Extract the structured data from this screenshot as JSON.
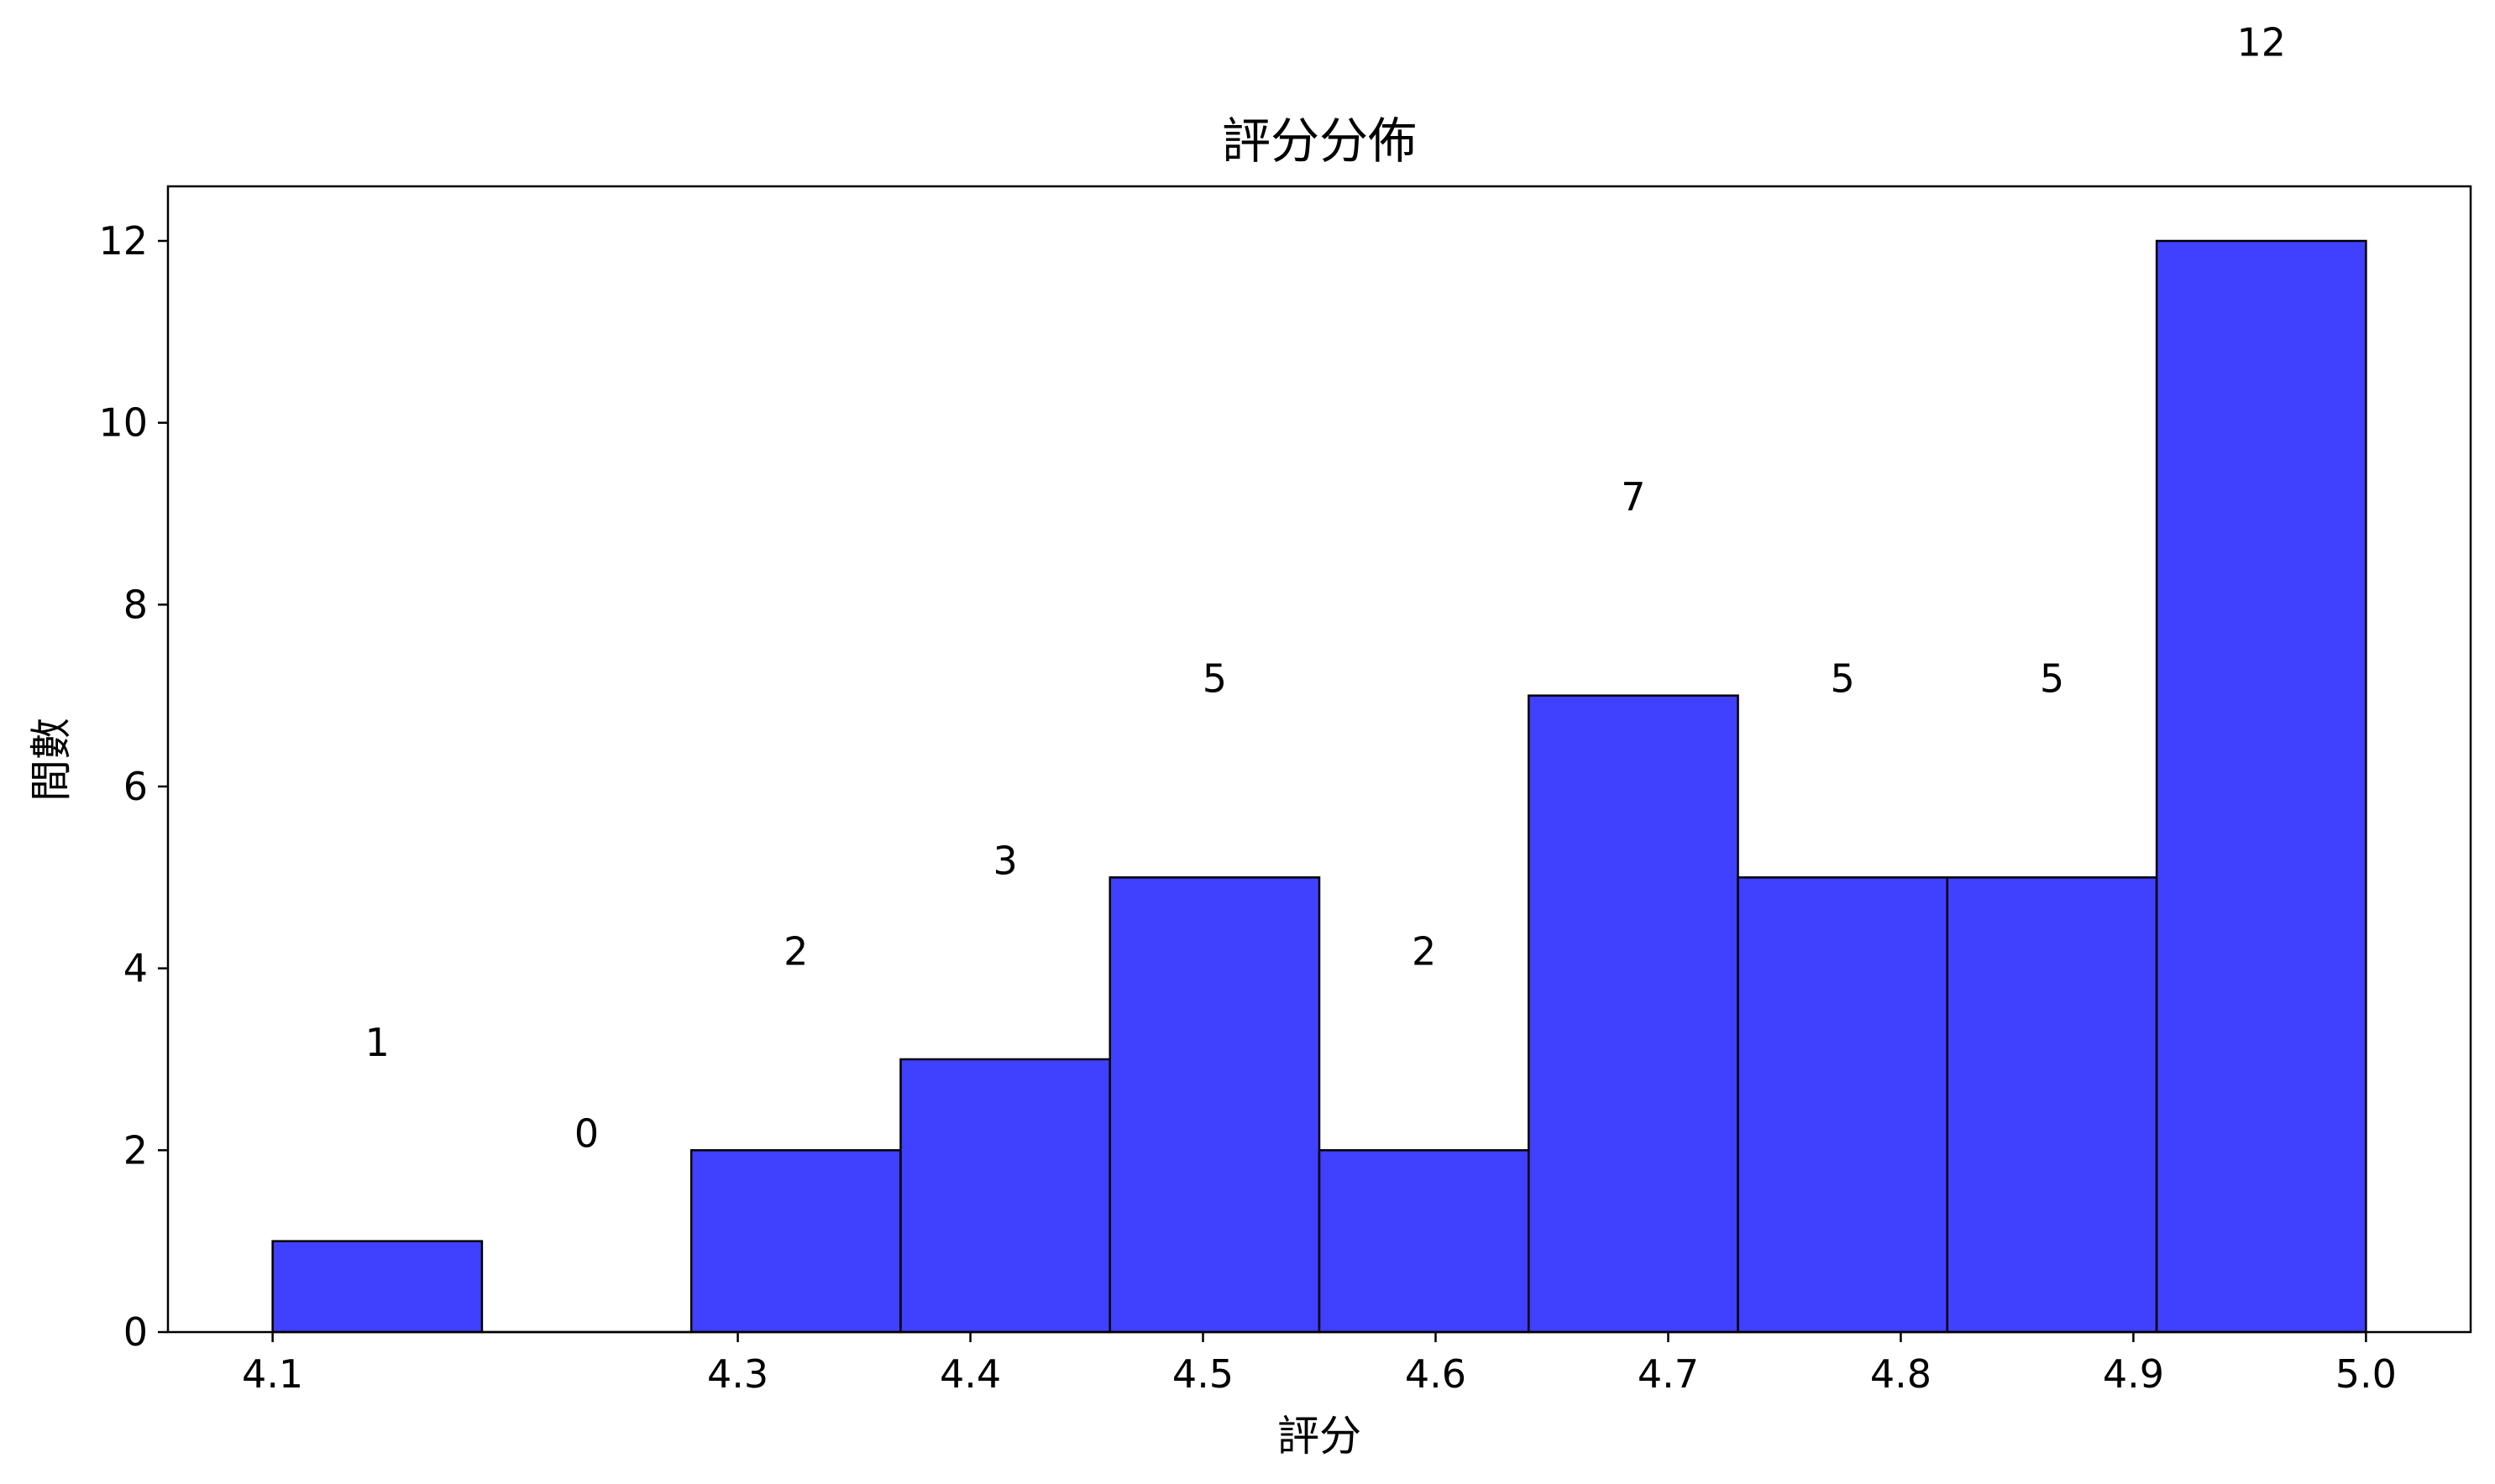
{
  "chart_data": {
    "type": "bar",
    "title": "評分分佈",
    "xlabel": "評分",
    "ylabel": "間數",
    "bin_edges": [
      4.1,
      4.19,
      4.28,
      4.37,
      4.46,
      4.55,
      4.64,
      4.73,
      4.82,
      4.91,
      5.0
    ],
    "values": [
      1,
      0,
      2,
      3,
      5,
      2,
      7,
      5,
      5,
      12
    ],
    "data_labels": [
      "1",
      "0",
      "2",
      "3",
      "5",
      "2",
      "7",
      "5",
      "5",
      "12"
    ],
    "x_ticks": [
      4.1,
      4.3,
      4.4,
      4.5,
      4.6,
      4.7,
      4.8,
      4.9,
      5.0
    ],
    "x_tick_labels": [
      "4.1",
      "4.3",
      "4.4",
      "4.5",
      "4.6",
      "4.7",
      "4.8",
      "4.9",
      "5.0"
    ],
    "y_ticks": [
      0,
      2,
      4,
      6,
      8,
      10,
      12
    ],
    "y_tick_labels": [
      "0",
      "2",
      "4",
      "6",
      "8",
      "10",
      "12"
    ],
    "xlim": [
      4.055,
      5.045
    ],
    "ylim": [
      0,
      12.6
    ],
    "grid": false,
    "legend": false,
    "bar_color": "#4040ff",
    "edge_color": "#000000"
  }
}
